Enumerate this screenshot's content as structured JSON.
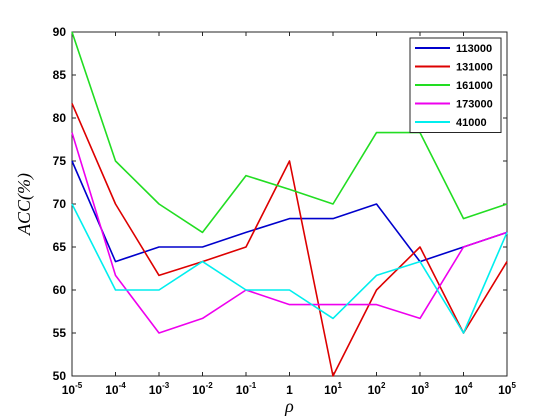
{
  "chart_data": {
    "type": "line",
    "xlabel": "ρ",
    "ylabel": "ACC(%)",
    "ylim": [
      50,
      90
    ],
    "yticks": [
      50,
      55,
      60,
      65,
      70,
      75,
      80,
      85,
      90
    ],
    "x_tick_labels": [
      {
        "base": "10",
        "exp": "-5"
      },
      {
        "base": "10",
        "exp": "-4"
      },
      {
        "base": "10",
        "exp": "-3"
      },
      {
        "base": "10",
        "exp": "-2"
      },
      {
        "base": "10",
        "exp": "-1"
      },
      {
        "base": "1",
        "exp": ""
      },
      {
        "base": "10",
        "exp": "1"
      },
      {
        "base": "10",
        "exp": "2"
      },
      {
        "base": "10",
        "exp": "3"
      },
      {
        "base": "10",
        "exp": "4"
      },
      {
        "base": "10",
        "exp": "5"
      }
    ],
    "grid": false,
    "legend_position": "top-right",
    "series": [
      {
        "name": "113000",
        "color": "#0000cc",
        "values": [
          75,
          63.3,
          65,
          65,
          66.7,
          68.3,
          68.3,
          70,
          63.3,
          65,
          66.7
        ]
      },
      {
        "name": "131000",
        "color": "#dd0000",
        "values": [
          81.7,
          70,
          61.7,
          63.3,
          65,
          75,
          50,
          60,
          65,
          55,
          63.3
        ]
      },
      {
        "name": "161000",
        "color": "#22dd22",
        "values": [
          90,
          75,
          70,
          66.7,
          73.3,
          71.7,
          70,
          78.3,
          78.3,
          68.3,
          70
        ]
      },
      {
        "name": "173000",
        "color": "#ee00ee",
        "values": [
          78.3,
          61.7,
          55,
          56.7,
          60,
          58.3,
          58.3,
          58.3,
          56.7,
          65,
          66.7
        ]
      },
      {
        "name": "41000",
        "color": "#00eeee",
        "values": [
          70,
          60,
          60,
          63.3,
          60,
          60,
          56.7,
          61.7,
          63.3,
          55,
          66.7
        ]
      }
    ]
  }
}
